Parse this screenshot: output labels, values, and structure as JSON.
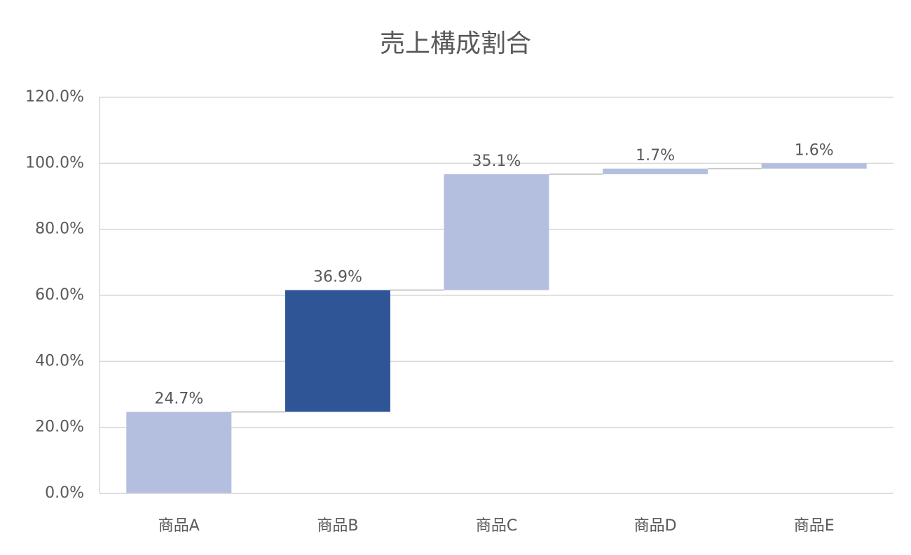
{
  "chart_data": {
    "type": "waterfall",
    "title": "売上構成割合",
    "categories": [
      "商品A",
      "商品B",
      "商品C",
      "商品D",
      "商品E"
    ],
    "values": [
      24.7,
      36.9,
      35.1,
      1.7,
      1.6
    ],
    "value_labels": [
      "24.7%",
      "36.9%",
      "35.1%",
      "1.7%",
      "1.6%"
    ],
    "colors": [
      "#b4bfdf",
      "#2f5597",
      "#b4bfdf",
      "#b4bfdf",
      "#b4bfdf"
    ],
    "ylim": [
      0,
      120
    ],
    "yticks": [
      {
        "value": 0,
        "label": "0.0%"
      },
      {
        "value": 20,
        "label": "20.0%"
      },
      {
        "value": 40,
        "label": "40.0%"
      },
      {
        "value": 60,
        "label": "60.0%"
      },
      {
        "value": 80,
        "label": "80.0%"
      },
      {
        "value": 100,
        "label": "100.0%"
      },
      {
        "value": 120,
        "label": "120.0%"
      }
    ],
    "grid": true
  }
}
